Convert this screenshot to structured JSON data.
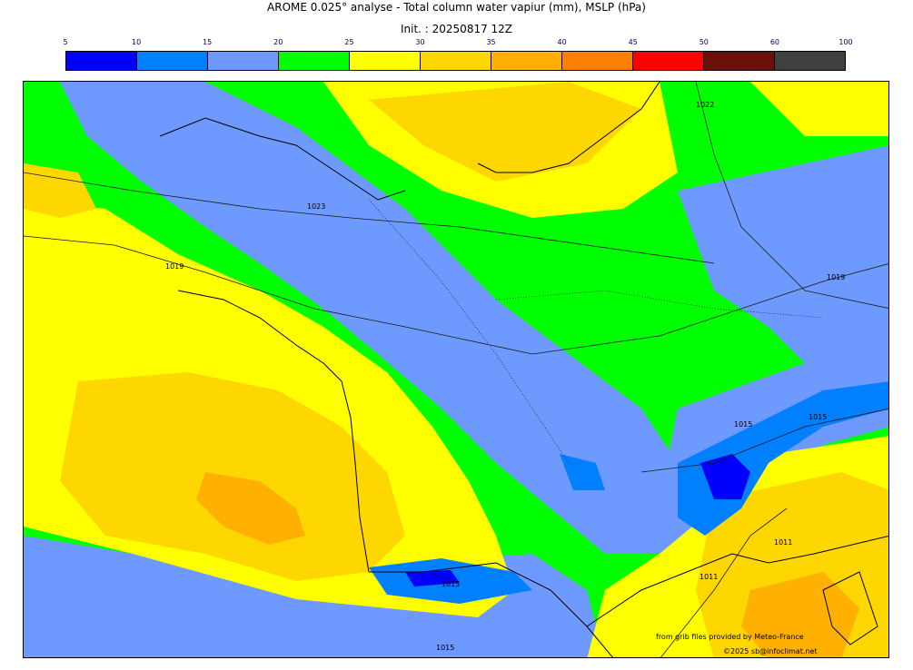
{
  "title": "AROME 0.025° analyse - Total column water vapiur (mm), MSLP (hPa)",
  "init": "Init. : 20250817 12Z",
  "colorbar": {
    "ticks": [
      "5",
      "10",
      "15",
      "20",
      "25",
      "30",
      "35",
      "40",
      "45",
      "50",
      "60",
      "100"
    ],
    "colors": [
      "#0000ff",
      "#0080ff",
      "#6e99ff",
      "#00ff00",
      "#ffff00",
      "#ffd700",
      "#ffb000",
      "#ff8000",
      "#ff0000",
      "#6b0f0a",
      "#404040"
    ]
  },
  "isobars": [
    "1022",
    "1023",
    "1019",
    "1019",
    "1015",
    "1015",
    "1015",
    "1011",
    "1011",
    "1015"
  ],
  "credits": {
    "line1": "from grib files provided by Meteo-France",
    "line2": "©2025 sb@infoclimat.net"
  }
}
